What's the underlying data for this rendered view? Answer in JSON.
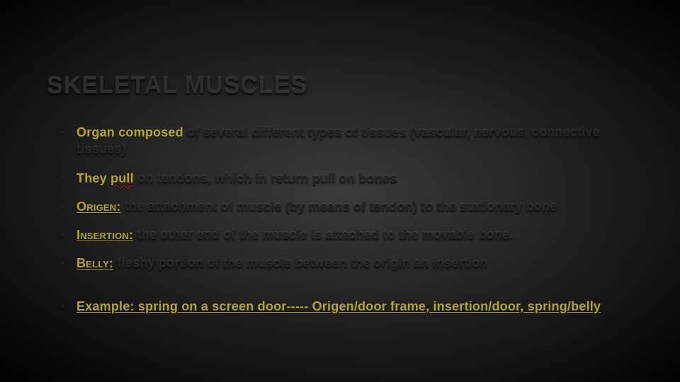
{
  "colors": {
    "background_center": "#3a3a3a",
    "background_edge": "#000000",
    "text_body": "#262626",
    "text_title": "#2d2d2d",
    "accent_yellow": "#b9a91a"
  },
  "typography": {
    "title_fontsize": 34,
    "body_fontsize": 18,
    "font_family": "Arial Black",
    "weight": 900
  },
  "slide": {
    "title": "SKELETAL MUSCLES",
    "bullets": [
      {
        "prefix": "Organ composed",
        "rest": "  of several different types of tissues (vascular, nervous, connective tissues)"
      },
      {
        "prefix": "They ",
        "squiggle": "pull",
        "rest": "  on tendons, which in return pull on bones"
      },
      {
        "term": "Origen:",
        "rest": " the attachment of muscle (by means of tendon) to the stationary bone"
      },
      {
        "term": "Insertion:",
        "rest": " the other end of the muscle is attached to the movable bone."
      },
      {
        "term": "Belly:",
        "rest": " fleshy portion of the muscle between the origin an insertion"
      },
      {
        "underline_full": true,
        "text": "Example: spring on a screen door----- Origen/door frame, insertion/door, spring/belly"
      }
    ]
  }
}
